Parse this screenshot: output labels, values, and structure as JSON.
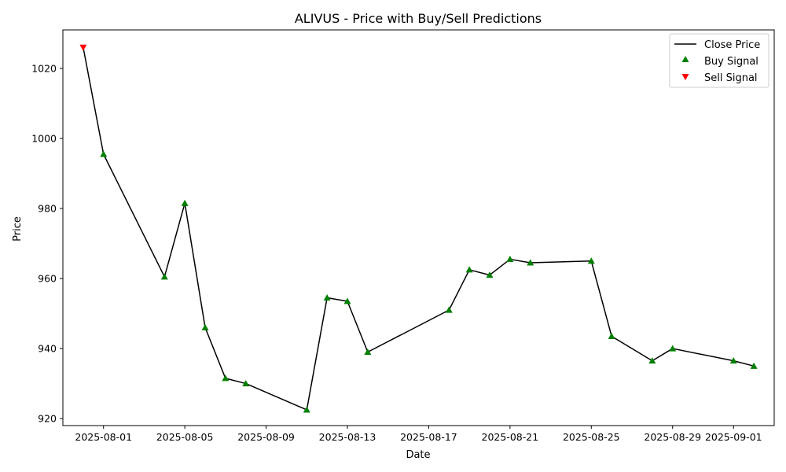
{
  "chart_data": {
    "type": "line",
    "title": "ALIVUS - Price with Buy/Sell Predictions",
    "xlabel": "Date",
    "ylabel": "Price",
    "ylim": [
      918,
      1031
    ],
    "xlim": [
      "2025-07-30",
      "2025-09-03"
    ],
    "x_ticks": [
      "2025-08-01",
      "2025-08-05",
      "2025-08-09",
      "2025-08-13",
      "2025-08-17",
      "2025-08-21",
      "2025-08-25",
      "2025-08-29",
      "2025-09-01"
    ],
    "y_ticks": [
      920,
      940,
      960,
      980,
      1000,
      1020
    ],
    "grid": false,
    "legend": {
      "placement": "top-right",
      "entries": [
        "Close Price",
        "Buy Signal",
        "Sell Signal"
      ]
    },
    "colors": {
      "line": "#000000",
      "buy": "#008000",
      "sell": "#ff0000"
    },
    "series": [
      {
        "name": "Close Price",
        "x": [
          "2025-07-31",
          "2025-08-01",
          "2025-08-04",
          "2025-08-05",
          "2025-08-06",
          "2025-08-07",
          "2025-08-08",
          "2025-08-11",
          "2025-08-12",
          "2025-08-13",
          "2025-08-14",
          "2025-08-18",
          "2025-08-19",
          "2025-08-20",
          "2025-08-21",
          "2025-08-22",
          "2025-08-25",
          "2025-08-26",
          "2025-08-28",
          "2025-08-29",
          "2025-09-01",
          "2025-09-02"
        ],
        "values": [
          1026,
          995.5,
          960.5,
          981.5,
          946,
          931.5,
          930,
          922.5,
          954.5,
          953.5,
          939,
          951,
          962.5,
          961,
          965.5,
          964.5,
          965,
          943.5,
          936.5,
          940,
          936.5,
          935
        ]
      },
      {
        "name": "Buy Signal",
        "x": [
          "2025-08-01",
          "2025-08-04",
          "2025-08-05",
          "2025-08-06",
          "2025-08-07",
          "2025-08-08",
          "2025-08-11",
          "2025-08-12",
          "2025-08-13",
          "2025-08-14",
          "2025-08-18",
          "2025-08-19",
          "2025-08-20",
          "2025-08-21",
          "2025-08-22",
          "2025-08-25",
          "2025-08-26",
          "2025-08-28",
          "2025-08-29",
          "2025-09-01",
          "2025-09-02"
        ],
        "values": [
          995.5,
          960.5,
          981.5,
          946,
          931.5,
          930,
          922.5,
          954.5,
          953.5,
          939,
          951,
          962.5,
          961,
          965.5,
          964.5,
          965,
          943.5,
          936.5,
          940,
          936.5,
          935
        ]
      },
      {
        "name": "Sell Signal",
        "x": [
          "2025-07-31"
        ],
        "values": [
          1026
        ]
      }
    ]
  }
}
